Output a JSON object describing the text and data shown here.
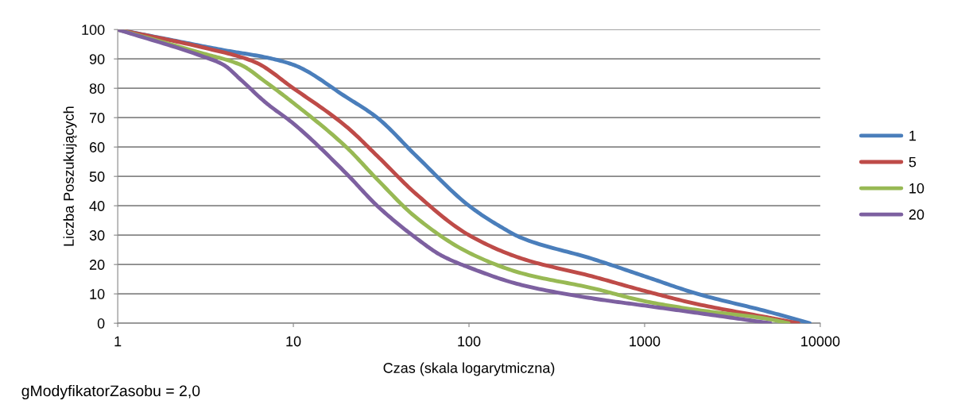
{
  "chart_data": {
    "type": "line",
    "xlabel": "Czas (skala logarytmiczna)",
    "ylabel": "Liczba Poszukujących",
    "log": "x",
    "xlim": [
      1,
      10000
    ],
    "xticks": [
      1,
      10,
      100,
      1000,
      10000
    ],
    "ylim": [
      0,
      100
    ],
    "yticks": [
      0,
      10,
      20,
      30,
      40,
      50,
      60,
      70,
      80,
      90,
      100
    ],
    "grid": "y",
    "legend": "right",
    "marker": "none",
    "line_style": "solid",
    "annotations": [
      "gModyfikatorZasobu = 2,0"
    ],
    "series": [
      {
        "name": "1",
        "color": "#4a7ebb",
        "x": [
          1,
          2,
          4,
          7,
          10,
          20,
          30,
          50,
          100,
          150,
          200,
          500,
          1000,
          2000,
          5000,
          8700
        ],
        "values": [
          100,
          96.5,
          93,
          90.5,
          88,
          77,
          70,
          57,
          40,
          33,
          29,
          22,
          16,
          10,
          4,
          0
        ]
      },
      {
        "name": "5",
        "color": "#be4b48",
        "x": [
          1,
          3,
          6,
          10,
          20,
          30,
          50,
          100,
          200,
          500,
          1000,
          2000,
          5000,
          7500
        ],
        "values": [
          100,
          94,
          89,
          80,
          67,
          57,
          44,
          30,
          22,
          16,
          11,
          6.5,
          2,
          0
        ]
      },
      {
        "name": "10",
        "color": "#98b954",
        "x": [
          1,
          3,
          5,
          7,
          10,
          20,
          30,
          50,
          100,
          200,
          500,
          1000,
          2000,
          5000,
          6600
        ],
        "values": [
          100,
          92,
          88,
          82,
          75,
          60,
          49,
          36,
          24,
          17,
          12,
          7.5,
          4.5,
          1.5,
          0
        ]
      },
      {
        "name": "20",
        "color": "#7d60a0",
        "x": [
          1,
          3,
          4,
          5,
          7,
          10,
          20,
          30,
          50,
          70,
          100,
          200,
          500,
          1000,
          2000,
          5200
        ],
        "values": [
          100,
          91,
          88,
          83,
          75,
          68,
          51,
          40,
          29,
          23,
          19,
          13,
          8.5,
          6,
          3.5,
          0
        ]
      }
    ]
  }
}
